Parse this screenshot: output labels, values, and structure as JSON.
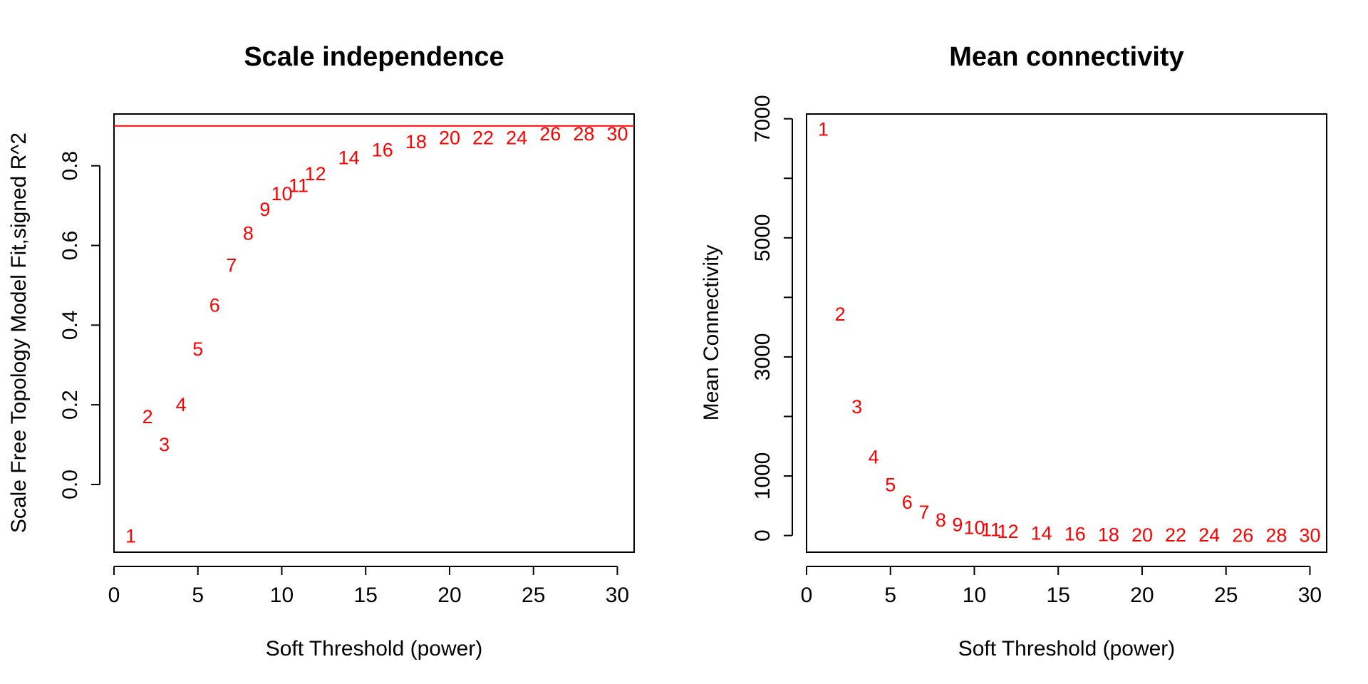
{
  "chart_data": [
    {
      "type": "scatter",
      "title": "Scale independence",
      "xlabel": "Soft Threshold (power)",
      "ylabel": "Scale Free Topology Model Fit,signed R^2",
      "xlim": [
        0,
        31
      ],
      "ylim": [
        -0.17,
        0.93
      ],
      "xticks": [
        "0",
        "5",
        "10",
        "15",
        "20",
        "25",
        "30"
      ],
      "yticks": [
        "0.0",
        "0.2",
        "0.4",
        "0.6",
        "0.8"
      ],
      "point_labels_are_x_values": true,
      "point_color": "#ff0000",
      "hline": {
        "y": 0.9,
        "color": "#ff0000"
      },
      "points": [
        {
          "x": 1,
          "y": -0.13
        },
        {
          "x": 2,
          "y": 0.17
        },
        {
          "x": 3,
          "y": 0.1
        },
        {
          "x": 4,
          "y": 0.2
        },
        {
          "x": 5,
          "y": 0.34
        },
        {
          "x": 6,
          "y": 0.45
        },
        {
          "x": 7,
          "y": 0.55
        },
        {
          "x": 8,
          "y": 0.63
        },
        {
          "x": 9,
          "y": 0.69
        },
        {
          "x": 10,
          "y": 0.73
        },
        {
          "x": 11,
          "y": 0.75
        },
        {
          "x": 12,
          "y": 0.78
        },
        {
          "x": 14,
          "y": 0.82
        },
        {
          "x": 16,
          "y": 0.84
        },
        {
          "x": 18,
          "y": 0.86
        },
        {
          "x": 20,
          "y": 0.87
        },
        {
          "x": 22,
          "y": 0.87
        },
        {
          "x": 24,
          "y": 0.87
        },
        {
          "x": 26,
          "y": 0.88
        },
        {
          "x": 28,
          "y": 0.88
        },
        {
          "x": 30,
          "y": 0.88
        }
      ]
    },
    {
      "type": "scatter",
      "title": "Mean connectivity",
      "xlabel": "Soft Threshold (power)",
      "ylabel": "Mean Connectivity",
      "xlim": [
        0,
        31
      ],
      "ylim": [
        -280,
        7080
      ],
      "xticks": [
        "0",
        "5",
        "10",
        "15",
        "20",
        "25",
        "30"
      ],
      "yticks": [
        "0",
        "1000",
        "3000",
        "5000",
        "7000"
      ],
      "ytick_minor": [
        2000,
        4000,
        6000
      ],
      "point_labels_are_x_values": true,
      "point_color": "#ff0000",
      "points": [
        {
          "x": 1,
          "y": 6820
        },
        {
          "x": 2,
          "y": 3720
        },
        {
          "x": 3,
          "y": 2160
        },
        {
          "x": 4,
          "y": 1320
        },
        {
          "x": 5,
          "y": 850
        },
        {
          "x": 6,
          "y": 560
        },
        {
          "x": 7,
          "y": 390
        },
        {
          "x": 8,
          "y": 260
        },
        {
          "x": 9,
          "y": 180
        },
        {
          "x": 10,
          "y": 130
        },
        {
          "x": 11,
          "y": 95
        },
        {
          "x": 12,
          "y": 70
        },
        {
          "x": 14,
          "y": 40
        },
        {
          "x": 16,
          "y": 25
        },
        {
          "x": 18,
          "y": 15
        },
        {
          "x": 20,
          "y": 10
        },
        {
          "x": 22,
          "y": 7
        },
        {
          "x": 24,
          "y": 5
        },
        {
          "x": 26,
          "y": 3
        },
        {
          "x": 28,
          "y": 2
        },
        {
          "x": 30,
          "y": 1
        }
      ]
    }
  ]
}
